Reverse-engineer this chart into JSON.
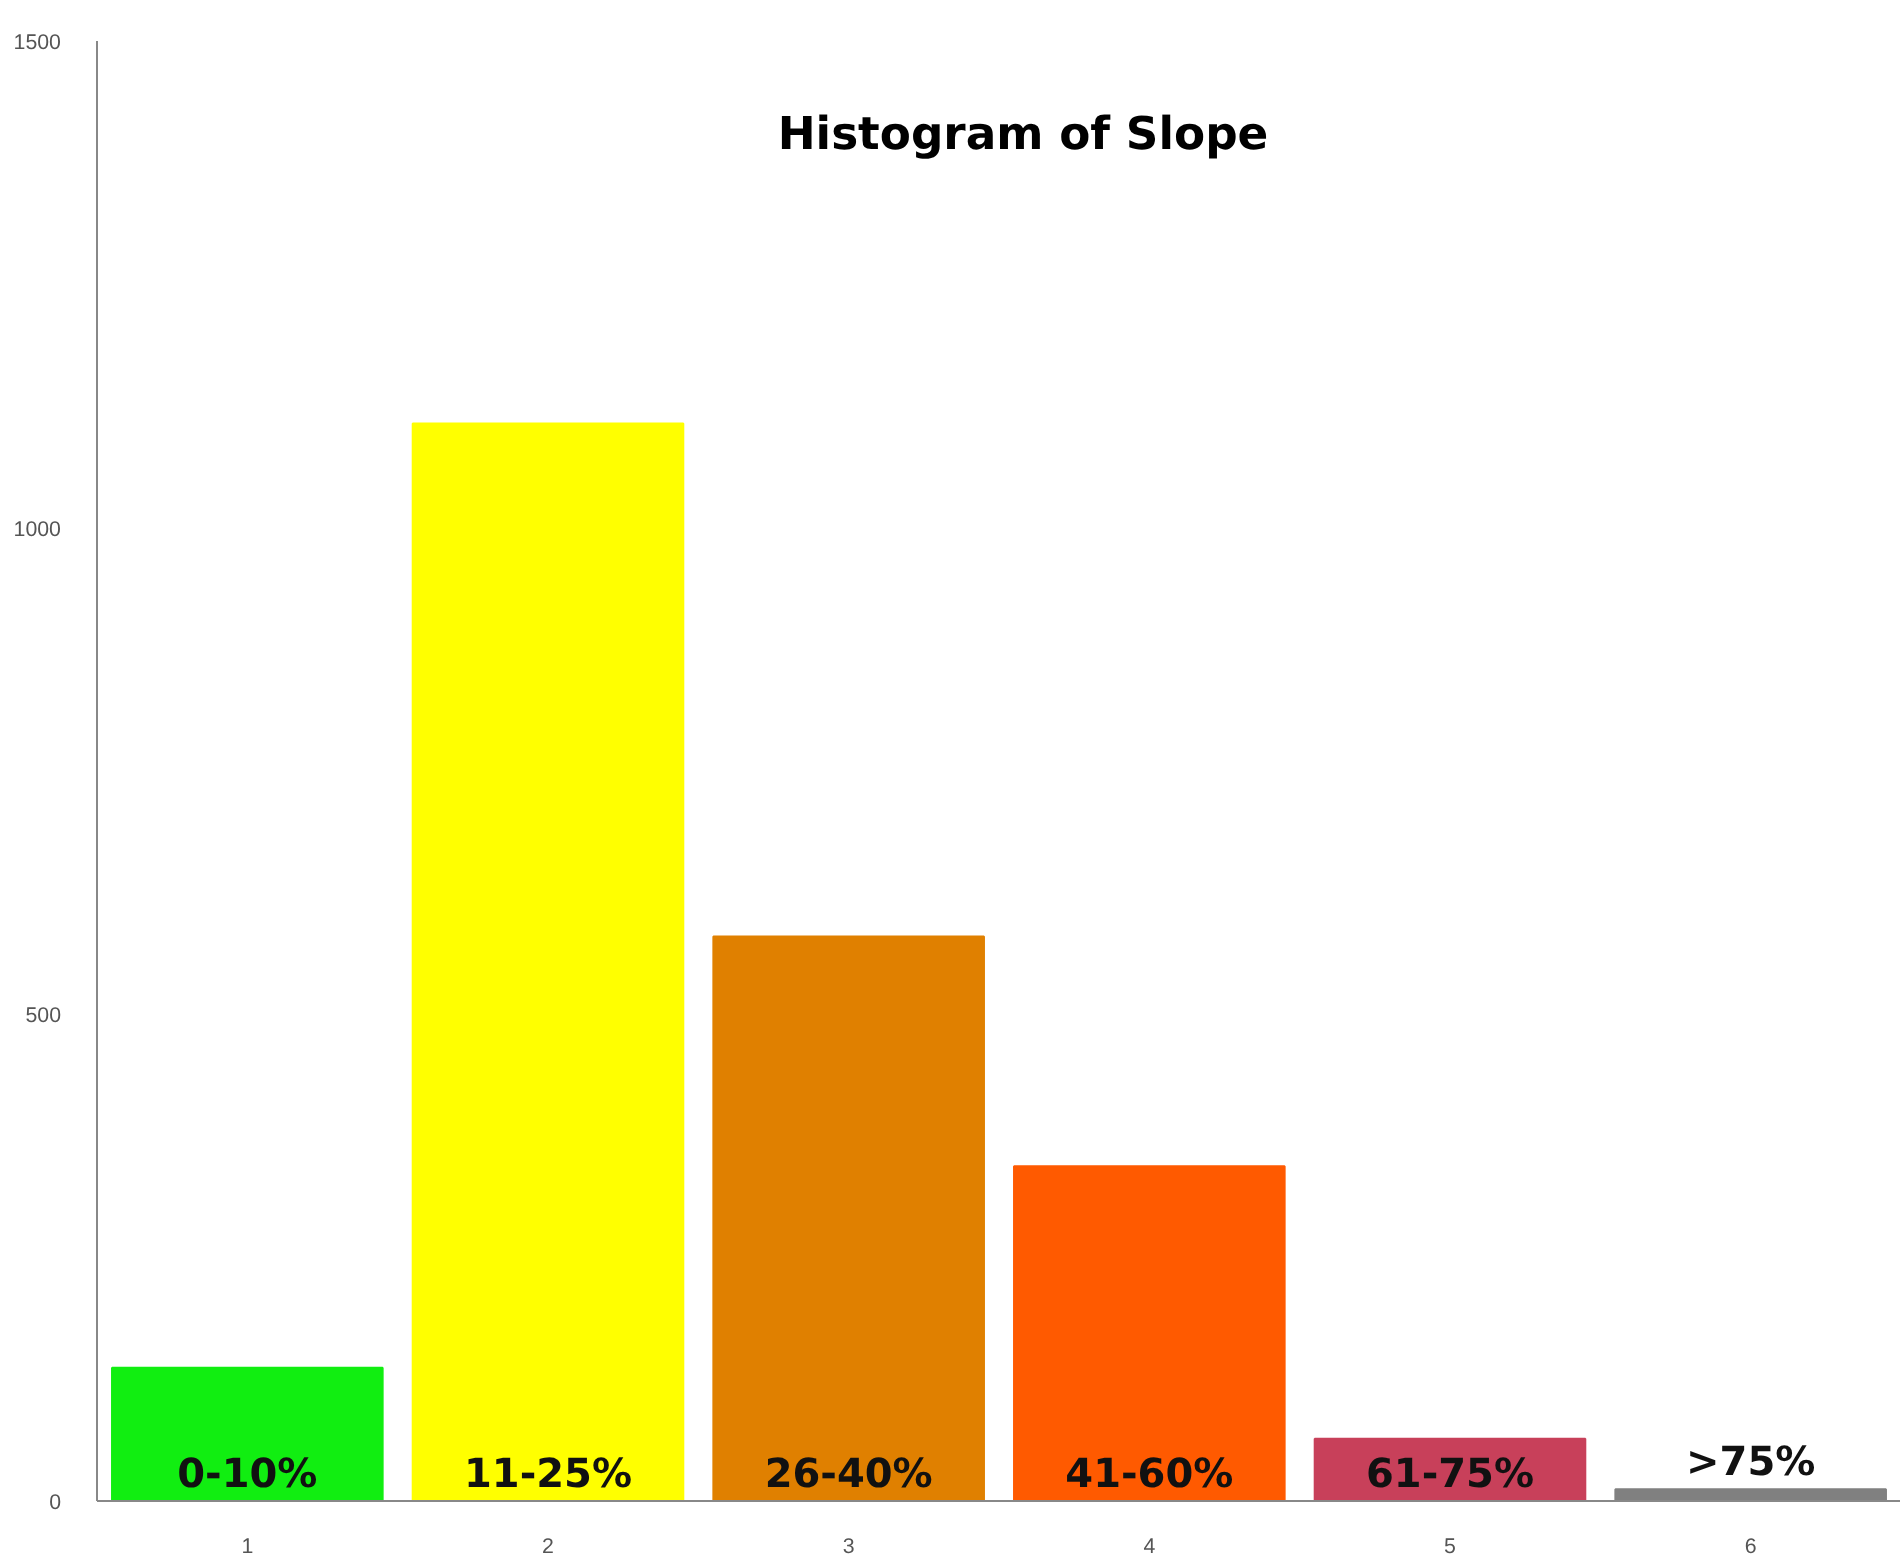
{
  "chart_data": {
    "type": "bar",
    "title": "Histogram of Slope",
    "x": [
      1,
      2,
      3,
      4,
      5,
      6
    ],
    "values": [
      137,
      1107,
      580,
      344,
      64,
      12
    ],
    "colors": [
      "#11ee11",
      "#ffff00",
      "#e08000",
      "#ff5a00",
      "#c8405a",
      "#808080"
    ],
    "xlim": [
      0.5,
      6.5
    ],
    "xticks": [
      1,
      2,
      3,
      4,
      5,
      6
    ],
    "ylim": [
      0,
      1500
    ],
    "yticks": [
      0,
      500,
      1000,
      1500
    ],
    "grid": false,
    "annotations": [
      {
        "text": "0-10%",
        "x": 1,
        "y": 0
      },
      {
        "text": "11-25%",
        "x": 2,
        "y": 0
      },
      {
        "text": "26-40%",
        "x": 3,
        "y": 0
      },
      {
        "text": "41-60%",
        "x": 4,
        "y": 0
      },
      {
        "text": "61-75%",
        "x": 5,
        "y": 0
      },
      {
        "text": ">75%",
        "x": 6,
        "y": 12
      }
    ]
  }
}
